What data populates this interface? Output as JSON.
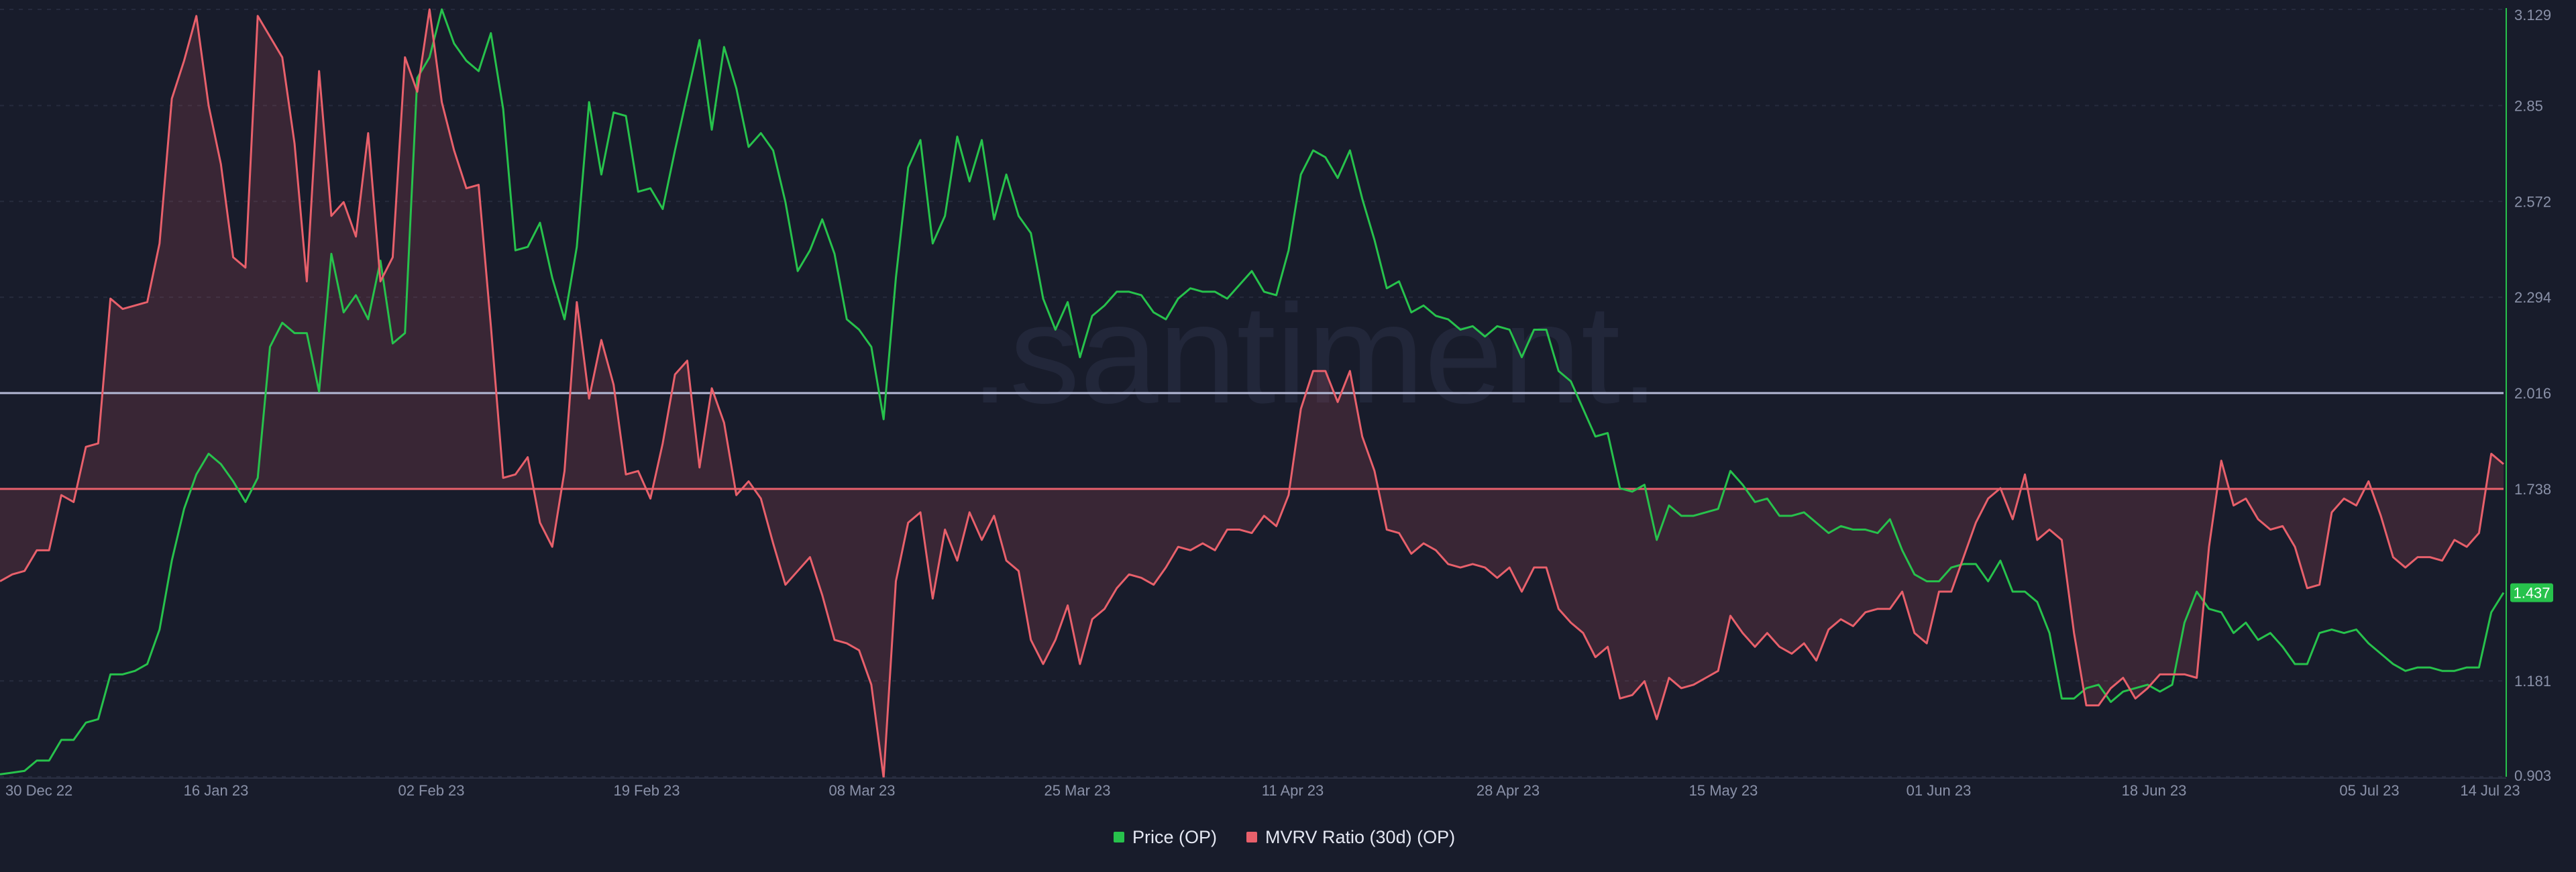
{
  "chart_data": {
    "type": "line",
    "watermark": ".santiment.",
    "x_ticks": [
      "30 Dec 22",
      "16 Jan 23",
      "02 Feb 23",
      "19 Feb 23",
      "08 Mar 23",
      "25 Mar 23",
      "11 Apr 23",
      "28 Apr 23",
      "15 May 23",
      "01 Jun 23",
      "18 Jun 23",
      "05 Jul 23",
      "14 Jul 23"
    ],
    "y_axis": {
      "side": "right",
      "ticks": [
        "3.129",
        "2.85",
        "2.572",
        "2.294",
        "2.016",
        "1.738",
        "1.181",
        "0.903"
      ],
      "range": [
        0.903,
        3.129
      ],
      "current_value_label": "1.437"
    },
    "reference_lines": [
      {
        "name": "level-upper",
        "value": 2.016,
        "color": "#b4b9d6"
      },
      {
        "name": "level-lower",
        "value": 1.738,
        "color": "#e8606b"
      }
    ],
    "series": [
      {
        "name": "Price (OP)",
        "color": "#27c24c",
        "values": [
          0.91,
          0.915,
          0.92,
          0.95,
          0.95,
          1.01,
          1.01,
          1.06,
          1.07,
          1.2,
          1.2,
          1.21,
          1.23,
          1.33,
          1.53,
          1.68,
          1.78,
          1.84,
          1.81,
          1.76,
          1.7,
          1.77,
          2.15,
          2.22,
          2.19,
          2.19,
          2.02,
          2.42,
          2.25,
          2.3,
          2.23,
          2.4,
          2.16,
          2.19,
          2.93,
          2.99,
          3.129,
          3.03,
          2.98,
          2.95,
          3.06,
          2.84,
          2.43,
          2.44,
          2.51,
          2.35,
          2.23,
          2.44,
          2.86,
          2.65,
          2.83,
          2.82,
          2.6,
          2.61,
          2.55,
          2.72,
          2.88,
          3.04,
          2.78,
          3.02,
          2.9,
          2.73,
          2.77,
          2.72,
          2.57,
          2.37,
          2.43,
          2.52,
          2.42,
          2.23,
          2.2,
          2.15,
          1.94,
          2.35,
          2.67,
          2.75,
          2.45,
          2.53,
          2.76,
          2.63,
          2.75,
          2.52,
          2.65,
          2.53,
          2.48,
          2.29,
          2.2,
          2.28,
          2.12,
          2.24,
          2.27,
          2.31,
          2.31,
          2.3,
          2.25,
          2.23,
          2.29,
          2.32,
          2.31,
          2.31,
          2.29,
          2.33,
          2.37,
          2.31,
          2.3,
          2.43,
          2.65,
          2.72,
          2.7,
          2.64,
          2.72,
          2.58,
          2.46,
          2.32,
          2.34,
          2.25,
          2.27,
          2.24,
          2.23,
          2.2,
          2.21,
          2.18,
          2.21,
          2.2,
          2.12,
          2.2,
          2.2,
          2.08,
          2.05,
          1.97,
          1.89,
          1.9,
          1.74,
          1.73,
          1.75,
          1.59,
          1.69,
          1.66,
          1.66,
          1.67,
          1.68,
          1.79,
          1.75,
          1.7,
          1.71,
          1.66,
          1.66,
          1.67,
          1.64,
          1.61,
          1.63,
          1.62,
          1.62,
          1.61,
          1.65,
          1.56,
          1.49,
          1.47,
          1.47,
          1.51,
          1.52,
          1.52,
          1.47,
          1.53,
          1.44,
          1.44,
          1.41,
          1.32,
          1.13,
          1.13,
          1.16,
          1.17,
          1.12,
          1.15,
          1.16,
          1.17,
          1.15,
          1.17,
          1.35,
          1.44,
          1.39,
          1.38,
          1.32,
          1.35,
          1.3,
          1.32,
          1.28,
          1.23,
          1.23,
          1.32,
          1.33,
          1.32,
          1.33,
          1.29,
          1.26,
          1.23,
          1.21,
          1.22,
          1.22,
          1.21,
          1.21,
          1.22,
          1.22,
          1.38,
          1.437
        ]
      },
      {
        "name": "MVRV Ratio (30d) (OP)",
        "color": "#e8606b",
        "values": [
          1.47,
          1.49,
          1.5,
          1.56,
          1.56,
          1.72,
          1.7,
          1.86,
          1.87,
          2.29,
          2.26,
          2.27,
          2.28,
          2.45,
          2.87,
          2.98,
          3.11,
          2.85,
          2.68,
          2.41,
          2.38,
          3.11,
          3.05,
          2.99,
          2.74,
          2.34,
          2.95,
          2.53,
          2.57,
          2.47,
          2.77,
          2.34,
          2.41,
          2.99,
          2.89,
          3.129,
          2.86,
          2.72,
          2.61,
          2.62,
          2.21,
          1.77,
          1.78,
          1.83,
          1.64,
          1.57,
          1.79,
          2.28,
          2.0,
          2.17,
          2.04,
          1.78,
          1.79,
          1.71,
          1.87,
          2.07,
          2.11,
          1.8,
          2.03,
          1.93,
          1.72,
          1.76,
          1.71,
          1.58,
          1.46,
          1.5,
          1.54,
          1.43,
          1.3,
          1.29,
          1.27,
          1.17,
          0.9,
          1.47,
          1.64,
          1.67,
          1.42,
          1.62,
          1.53,
          1.67,
          1.59,
          1.66,
          1.53,
          1.5,
          1.3,
          1.23,
          1.3,
          1.4,
          1.23,
          1.36,
          1.39,
          1.45,
          1.49,
          1.48,
          1.46,
          1.51,
          1.57,
          1.56,
          1.58,
          1.56,
          1.62,
          1.62,
          1.61,
          1.66,
          1.63,
          1.72,
          1.97,
          2.08,
          2.08,
          1.99,
          2.08,
          1.89,
          1.79,
          1.62,
          1.61,
          1.55,
          1.58,
          1.56,
          1.52,
          1.51,
          1.52,
          1.51,
          1.48,
          1.51,
          1.44,
          1.51,
          1.51,
          1.39,
          1.35,
          1.32,
          1.25,
          1.28,
          1.13,
          1.14,
          1.18,
          1.07,
          1.19,
          1.16,
          1.17,
          1.19,
          1.21,
          1.37,
          1.32,
          1.28,
          1.32,
          1.28,
          1.26,
          1.29,
          1.24,
          1.33,
          1.36,
          1.34,
          1.38,
          1.39,
          1.39,
          1.44,
          1.32,
          1.29,
          1.44,
          1.44,
          1.54,
          1.64,
          1.71,
          1.74,
          1.65,
          1.78,
          1.59,
          1.62,
          1.59,
          1.32,
          1.11,
          1.11,
          1.16,
          1.19,
          1.13,
          1.16,
          1.2,
          1.2,
          1.2,
          1.19,
          1.57,
          1.82,
          1.69,
          1.71,
          1.65,
          1.62,
          1.63,
          1.57,
          1.45,
          1.46,
          1.67,
          1.71,
          1.69,
          1.76,
          1.66,
          1.54,
          1.51,
          1.54,
          1.54,
          1.53,
          1.59,
          1.57,
          1.61,
          1.84,
          1.81
        ]
      }
    ],
    "legend": {
      "placement": "bottom-center",
      "items": [
        "Price (OP)",
        "MVRV Ratio (30d) (OP)"
      ]
    },
    "grid": "horizontal dashed"
  }
}
